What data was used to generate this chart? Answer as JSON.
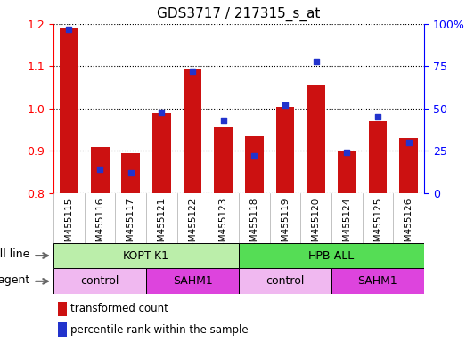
{
  "title": "GDS3717 / 217315_s_at",
  "categories": [
    "GSM455115",
    "GSM455116",
    "GSM455117",
    "GSM455121",
    "GSM455122",
    "GSM455123",
    "GSM455118",
    "GSM455119",
    "GSM455120",
    "GSM455124",
    "GSM455125",
    "GSM455126"
  ],
  "red_values": [
    1.19,
    0.91,
    0.895,
    0.99,
    1.095,
    0.955,
    0.935,
    1.005,
    1.055,
    0.9,
    0.97,
    0.93
  ],
  "blue_values": [
    97,
    14,
    12,
    48,
    72,
    43,
    22,
    52,
    78,
    24,
    45,
    30
  ],
  "ylim_left": [
    0.8,
    1.2
  ],
  "ylim_right": [
    0,
    100
  ],
  "yticks_left": [
    0.8,
    0.9,
    1.0,
    1.1,
    1.2
  ],
  "yticks_right": [
    0,
    25,
    50,
    75,
    100
  ],
  "ytick_labels_right": [
    "0",
    "25",
    "50",
    "75",
    "100%"
  ],
  "bar_color": "#cc1111",
  "dot_color": "#2233cc",
  "cell_line_kopt_color": "#bbeeaa",
  "cell_line_hpb_color": "#55dd55",
  "agent_control_color": "#f0b8f0",
  "agent_sahm1_color": "#dd44dd",
  "legend_red": "transformed count",
  "legend_blue": "percentile rank within the sample",
  "bar_width": 0.6,
  "background_color": "#ffffff",
  "title_fontsize": 11,
  "xtick_fontsize": 7.5,
  "ytick_fontsize": 9,
  "annot_fontsize": 9,
  "legend_fontsize": 8.5,
  "xtick_bg_color": "#cccccc",
  "left_label_color": "#444444"
}
